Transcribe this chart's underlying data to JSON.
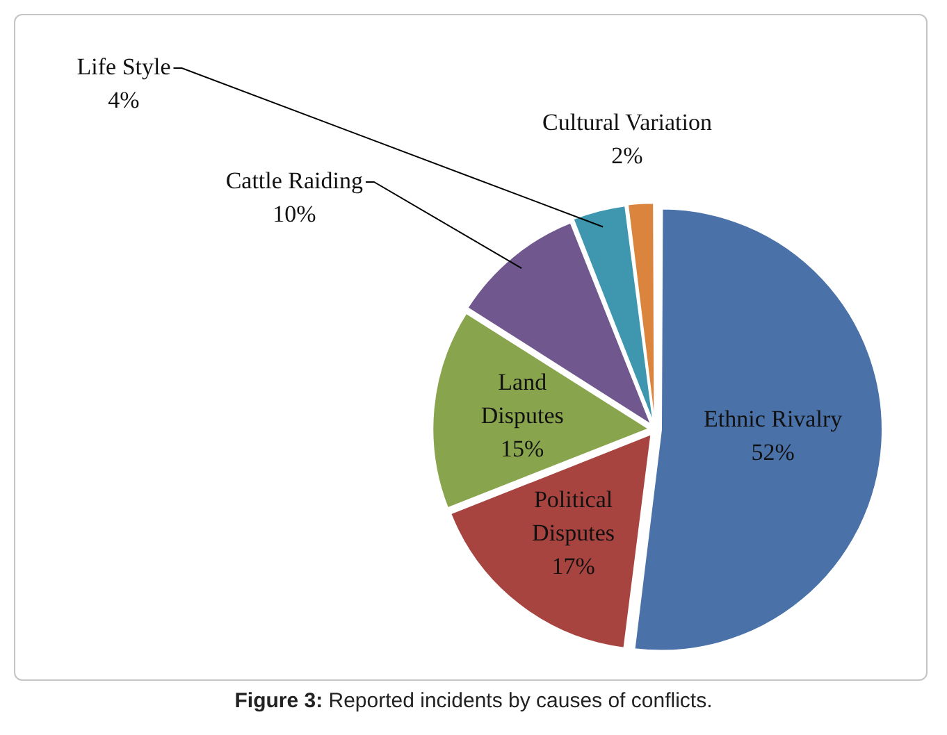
{
  "chart_data": {
    "type": "pie",
    "categories": [
      "Ethnic Rivalry",
      "Political Disputes",
      "Land Disputes",
      "Cattle Raiding",
      "Life Style",
      "Cultural Variation"
    ],
    "values": [
      52,
      17,
      15,
      10,
      4,
      2
    ],
    "value_labels": [
      "52%",
      "17%",
      "15%",
      "10%",
      "4%",
      "2%"
    ],
    "colors": [
      "#4a72a8",
      "#a8443f",
      "#88a44c",
      "#70578e",
      "#3f97af",
      "#db843d"
    ],
    "legend": false,
    "annotations": [
      "Figure  3: Reported incidents by causes of conflicts."
    ]
  }
}
